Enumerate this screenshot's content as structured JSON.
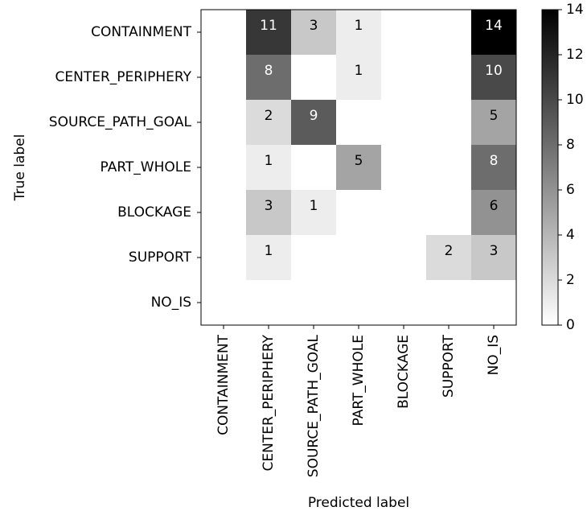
{
  "chart_data": {
    "type": "heatmap",
    "title": "",
    "xlabel": "Predicted label",
    "ylabel": "True label",
    "x_categories": [
      "CONTAINMENT",
      "CENTER_PERIPHERY",
      "SOURCE_PATH_GOAL",
      "PART_WHOLE",
      "BLOCKAGE",
      "SUPPORT",
      "NO_IS"
    ],
    "y_categories": [
      "CONTAINMENT",
      "CENTER_PERIPHERY",
      "SOURCE_PATH_GOAL",
      "PART_WHOLE",
      "BLOCKAGE",
      "SUPPORT",
      "NO_IS"
    ],
    "values": [
      [
        0,
        11,
        3,
        1,
        0,
        0,
        14
      ],
      [
        0,
        8,
        0,
        1,
        0,
        0,
        10
      ],
      [
        0,
        2,
        9,
        0,
        0,
        0,
        5
      ],
      [
        0,
        1,
        0,
        5,
        0,
        0,
        8
      ],
      [
        0,
        3,
        1,
        0,
        0,
        0,
        6
      ],
      [
        0,
        1,
        0,
        0,
        0,
        2,
        3
      ],
      [
        0,
        0,
        0,
        0,
        0,
        0,
        0
      ]
    ],
    "show_zero_labels": false,
    "colormap": "Greys",
    "vmin": 0,
    "vmax": 14,
    "colorbar": {
      "ticks": [
        0,
        2,
        4,
        6,
        8,
        10,
        12,
        14
      ],
      "tick_labels": [
        "0",
        "2",
        "4",
        "6",
        "8",
        "10",
        "12",
        "14"
      ]
    },
    "grid": false
  }
}
